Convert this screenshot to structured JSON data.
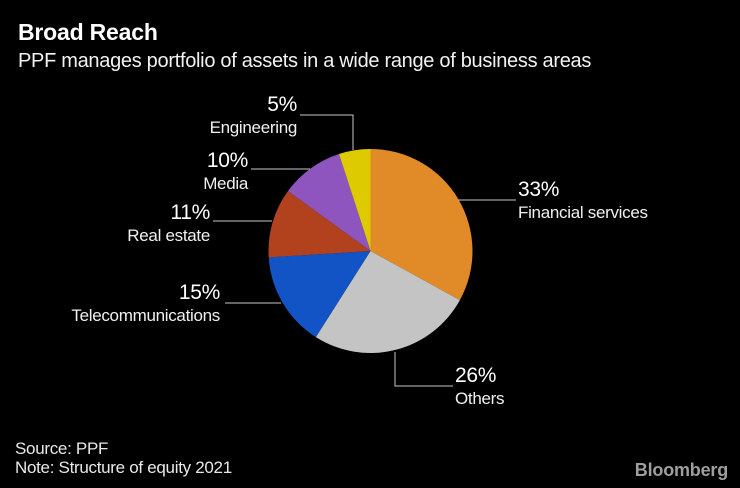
{
  "header": {
    "title": "Broad Reach",
    "subtitle": "PPF manages portfolio of assets in a wide range of business areas"
  },
  "footer": {
    "source": "Source: PPF",
    "note": "Note: Structure of equity 2021",
    "brand": "Bloomberg"
  },
  "colors": {
    "background": "#000000",
    "text": "#ffffff",
    "leader_line": "#c8c8c8",
    "brand_gray": "#9e9e9e"
  },
  "chart_data": {
    "type": "pie",
    "title": "Broad Reach",
    "subtitle": "PPF manages portfolio of assets in a wide range of business areas",
    "source": "Source: PPF",
    "note": "Note: Structure of equity 2021",
    "start_angle_deg": 0,
    "direction": "clockwise",
    "legend": "none",
    "slices": [
      {
        "label": "Financial services",
        "value_pct": 33,
        "display": "33%",
        "color": "#e08a28"
      },
      {
        "label": "Others",
        "value_pct": 26,
        "display": "26%",
        "color": "#c4c4c4"
      },
      {
        "label": "Telecommunications",
        "value_pct": 15,
        "display": "15%",
        "color": "#1254c6"
      },
      {
        "label": "Real estate",
        "value_pct": 11,
        "display": "11%",
        "color": "#b2421e"
      },
      {
        "label": "Media",
        "value_pct": 10,
        "display": "10%",
        "color": "#8f55bf"
      },
      {
        "label": "Engineering",
        "value_pct": 5,
        "display": "5%",
        "color": "#ddca00"
      }
    ]
  }
}
